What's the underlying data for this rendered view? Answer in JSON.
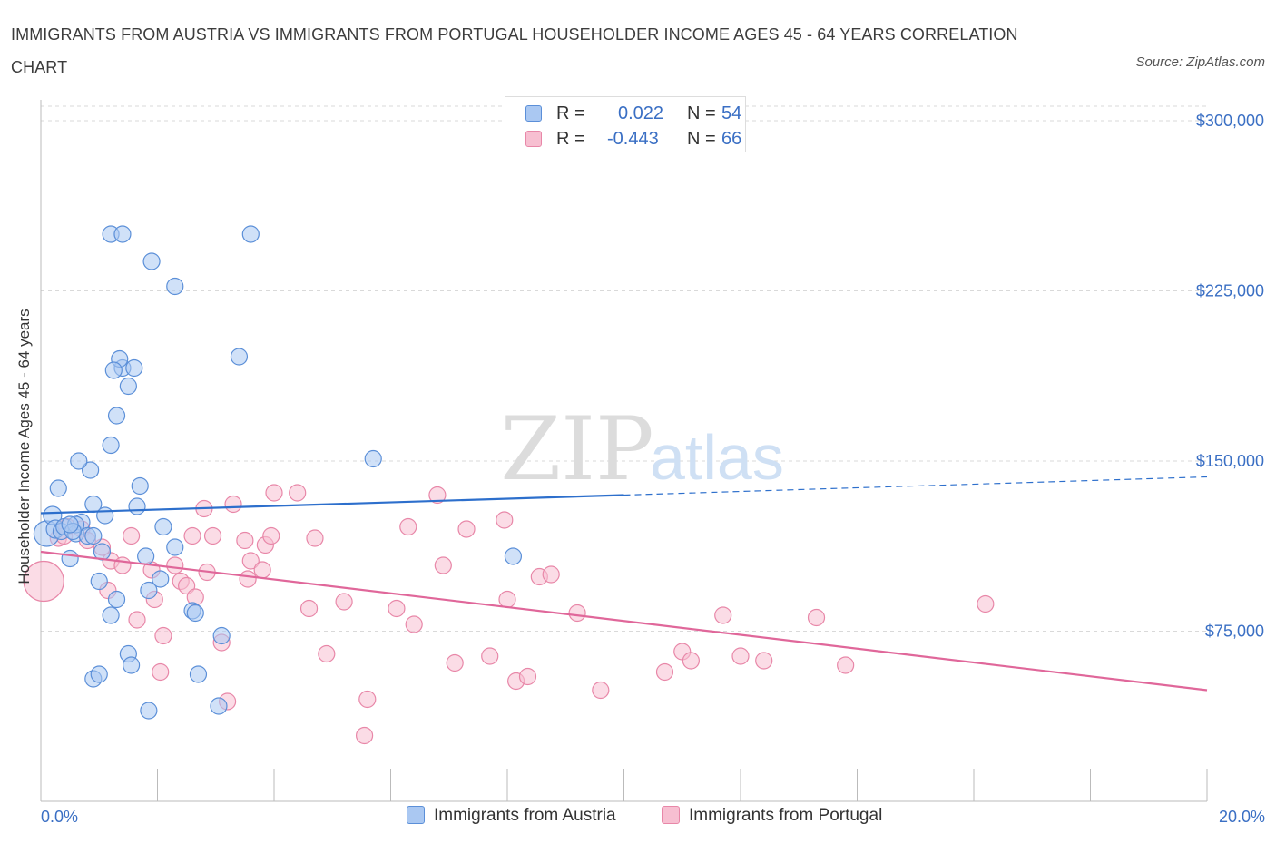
{
  "title": "IMMIGRANTS FROM AUSTRIA VS IMMIGRANTS FROM PORTUGAL HOUSEHOLDER INCOME AGES 45 - 64 YEARS CORRELATION CHART",
  "source": "Source: ZipAtlas.com",
  "watermark": {
    "zip": "ZIP",
    "atlas": "atlas"
  },
  "legend": {
    "rows": [
      {
        "r_label": "R =",
        "r_value": "0.022",
        "n_label": "N =",
        "n_value": "54"
      },
      {
        "r_label": "R =",
        "r_value": "-0.443",
        "n_label": "N =",
        "n_value": "66"
      }
    ]
  },
  "bottom_legend": {
    "austria": "Immigrants from Austria",
    "portugal": "Immigrants from Portugal"
  },
  "x_axis_labels": {
    "left": "0.0%",
    "right": "20.0%"
  },
  "colors": {
    "austria_fill": "#aac8f2",
    "austria_stroke": "#5b8fd8",
    "austria_line": "#2d6fcc",
    "portugal_fill": "#f7bfd1",
    "portugal_stroke": "#e887a8",
    "portugal_line": "#e0679a",
    "grid": "#d9d9d9",
    "tick_text": "#3a6fc4"
  },
  "chart_data": {
    "type": "scatter",
    "title": "IMMIGRANTS FROM AUSTRIA VS IMMIGRANTS FROM PORTUGAL HOUSEHOLDER INCOME AGES 45 - 64 YEARS CORRELATION CHART",
    "xlabel": "",
    "ylabel": "Householder Income Ages 45 - 64 years",
    "xlim": [
      0,
      20
    ],
    "ylim": [
      0,
      300000
    ],
    "y_ticks": [
      {
        "value": 75000,
        "label": "$75,000"
      },
      {
        "value": 150000,
        "label": "$150,000"
      },
      {
        "value": 225000,
        "label": "$225,000"
      },
      {
        "value": 300000,
        "label": "$300,000"
      }
    ],
    "grid": true,
    "legend_position": "top-center",
    "series": [
      {
        "name": "Immigrants from Austria",
        "trend": {
          "x": [
            0,
            10
          ],
          "y": [
            127000,
            135000
          ],
          "dashed_to": [
            20,
            143000
          ]
        },
        "points": [
          [
            0.1,
            118000,
            14
          ],
          [
            0.2,
            126000,
            10
          ],
          [
            0.25,
            120000,
            10
          ],
          [
            0.3,
            138000,
            9
          ],
          [
            0.35,
            119000,
            9
          ],
          [
            0.4,
            121000,
            9
          ],
          [
            0.5,
            107000,
            9
          ],
          [
            0.6,
            118000,
            9
          ],
          [
            0.7,
            123000,
            9
          ],
          [
            0.8,
            117000,
            9
          ],
          [
            0.6,
            122000,
            9
          ],
          [
            0.55,
            119000,
            9
          ],
          [
            0.5,
            122000,
            9
          ],
          [
            0.9,
            117000,
            9
          ],
          [
            1.0,
            97000,
            9
          ],
          [
            0.85,
            146000,
            9
          ],
          [
            0.65,
            150000,
            9
          ],
          [
            1.1,
            126000,
            9
          ],
          [
            0.9,
            131000,
            9
          ],
          [
            1.05,
            110000,
            9
          ],
          [
            1.2,
            82000,
            9
          ],
          [
            1.3,
            89000,
            9
          ],
          [
            1.5,
            65000,
            9
          ],
          [
            1.55,
            60000,
            9
          ],
          [
            1.7,
            139000,
            9
          ],
          [
            1.65,
            130000,
            9
          ],
          [
            1.8,
            108000,
            9
          ],
          [
            1.85,
            93000,
            9
          ],
          [
            2.1,
            121000,
            9
          ],
          [
            2.3,
            112000,
            9
          ],
          [
            2.05,
            98000,
            9
          ],
          [
            2.6,
            84000,
            9
          ],
          [
            2.65,
            83000,
            9
          ],
          [
            2.7,
            56000,
            9
          ],
          [
            3.1,
            73000,
            9
          ],
          [
            3.05,
            42000,
            9
          ],
          [
            1.2,
            157000,
            9
          ],
          [
            1.3,
            170000,
            9
          ],
          [
            0.9,
            54000,
            9
          ],
          [
            1.5,
            183000,
            9
          ],
          [
            1.4,
            191000,
            9
          ],
          [
            1.35,
            195000,
            9
          ],
          [
            1.25,
            190000,
            9
          ],
          [
            1.6,
            191000,
            9
          ],
          [
            1.2,
            250000,
            9
          ],
          [
            1.4,
            250000,
            9
          ],
          [
            1.9,
            238000,
            9
          ],
          [
            2.3,
            227000,
            9
          ],
          [
            3.4,
            196000,
            9
          ],
          [
            3.6,
            250000,
            9
          ],
          [
            5.7,
            151000,
            9
          ],
          [
            8.1,
            108000,
            9
          ],
          [
            1.0,
            56000,
            9
          ],
          [
            1.85,
            40000,
            9
          ]
        ]
      },
      {
        "name": "Immigrants from Portugal",
        "trend": {
          "x": [
            0,
            20
          ],
          "y": [
            110000,
            49000
          ]
        },
        "points": [
          [
            0.05,
            97000,
            22
          ],
          [
            0.3,
            116000,
            9
          ],
          [
            0.45,
            121000,
            9
          ],
          [
            0.7,
            120000,
            9
          ],
          [
            0.8,
            115000,
            9
          ],
          [
            1.05,
            112000,
            9
          ],
          [
            1.2,
            106000,
            9
          ],
          [
            1.15,
            93000,
            9
          ],
          [
            1.4,
            104000,
            9
          ],
          [
            1.55,
            117000,
            9
          ],
          [
            1.65,
            80000,
            9
          ],
          [
            1.9,
            102000,
            9
          ],
          [
            1.95,
            89000,
            9
          ],
          [
            2.1,
            73000,
            9
          ],
          [
            2.05,
            57000,
            9
          ],
          [
            2.3,
            104000,
            9
          ],
          [
            2.4,
            97000,
            9
          ],
          [
            2.5,
            95000,
            9
          ],
          [
            2.6,
            117000,
            9
          ],
          [
            2.65,
            90000,
            9
          ],
          [
            2.8,
            129000,
            9
          ],
          [
            2.85,
            101000,
            9
          ],
          [
            2.95,
            117000,
            9
          ],
          [
            3.1,
            70000,
            9
          ],
          [
            3.3,
            131000,
            9
          ],
          [
            3.5,
            115000,
            9
          ],
          [
            3.55,
            98000,
            9
          ],
          [
            3.6,
            106000,
            9
          ],
          [
            3.8,
            102000,
            9
          ],
          [
            3.85,
            113000,
            9
          ],
          [
            3.95,
            117000,
            9
          ],
          [
            4.0,
            136000,
            9
          ],
          [
            4.4,
            136000,
            9
          ],
          [
            4.6,
            85000,
            9
          ],
          [
            4.7,
            116000,
            9
          ],
          [
            4.9,
            65000,
            9
          ],
          [
            5.2,
            88000,
            9
          ],
          [
            5.55,
            29000,
            9
          ],
          [
            5.6,
            45000,
            9
          ],
          [
            6.1,
            85000,
            9
          ],
          [
            6.3,
            121000,
            9
          ],
          [
            6.4,
            78000,
            9
          ],
          [
            6.8,
            135000,
            9
          ],
          [
            6.9,
            104000,
            9
          ],
          [
            7.1,
            61000,
            9
          ],
          [
            7.3,
            120000,
            9
          ],
          [
            7.7,
            64000,
            9
          ],
          [
            7.95,
            124000,
            9
          ],
          [
            8.0,
            89000,
            9
          ],
          [
            8.15,
            53000,
            9
          ],
          [
            8.35,
            55000,
            9
          ],
          [
            8.55,
            99000,
            9
          ],
          [
            8.75,
            100000,
            9
          ],
          [
            9.2,
            83000,
            9
          ],
          [
            9.6,
            49000,
            9
          ],
          [
            10.7,
            57000,
            9
          ],
          [
            11.0,
            66000,
            9
          ],
          [
            11.15,
            62000,
            9
          ],
          [
            11.7,
            82000,
            9
          ],
          [
            12.0,
            64000,
            9
          ],
          [
            12.4,
            62000,
            9
          ],
          [
            13.3,
            81000,
            9
          ],
          [
            13.8,
            60000,
            9
          ],
          [
            16.2,
            87000,
            9
          ],
          [
            3.2,
            44000,
            9
          ],
          [
            0.4,
            117000,
            9
          ]
        ]
      }
    ]
  }
}
